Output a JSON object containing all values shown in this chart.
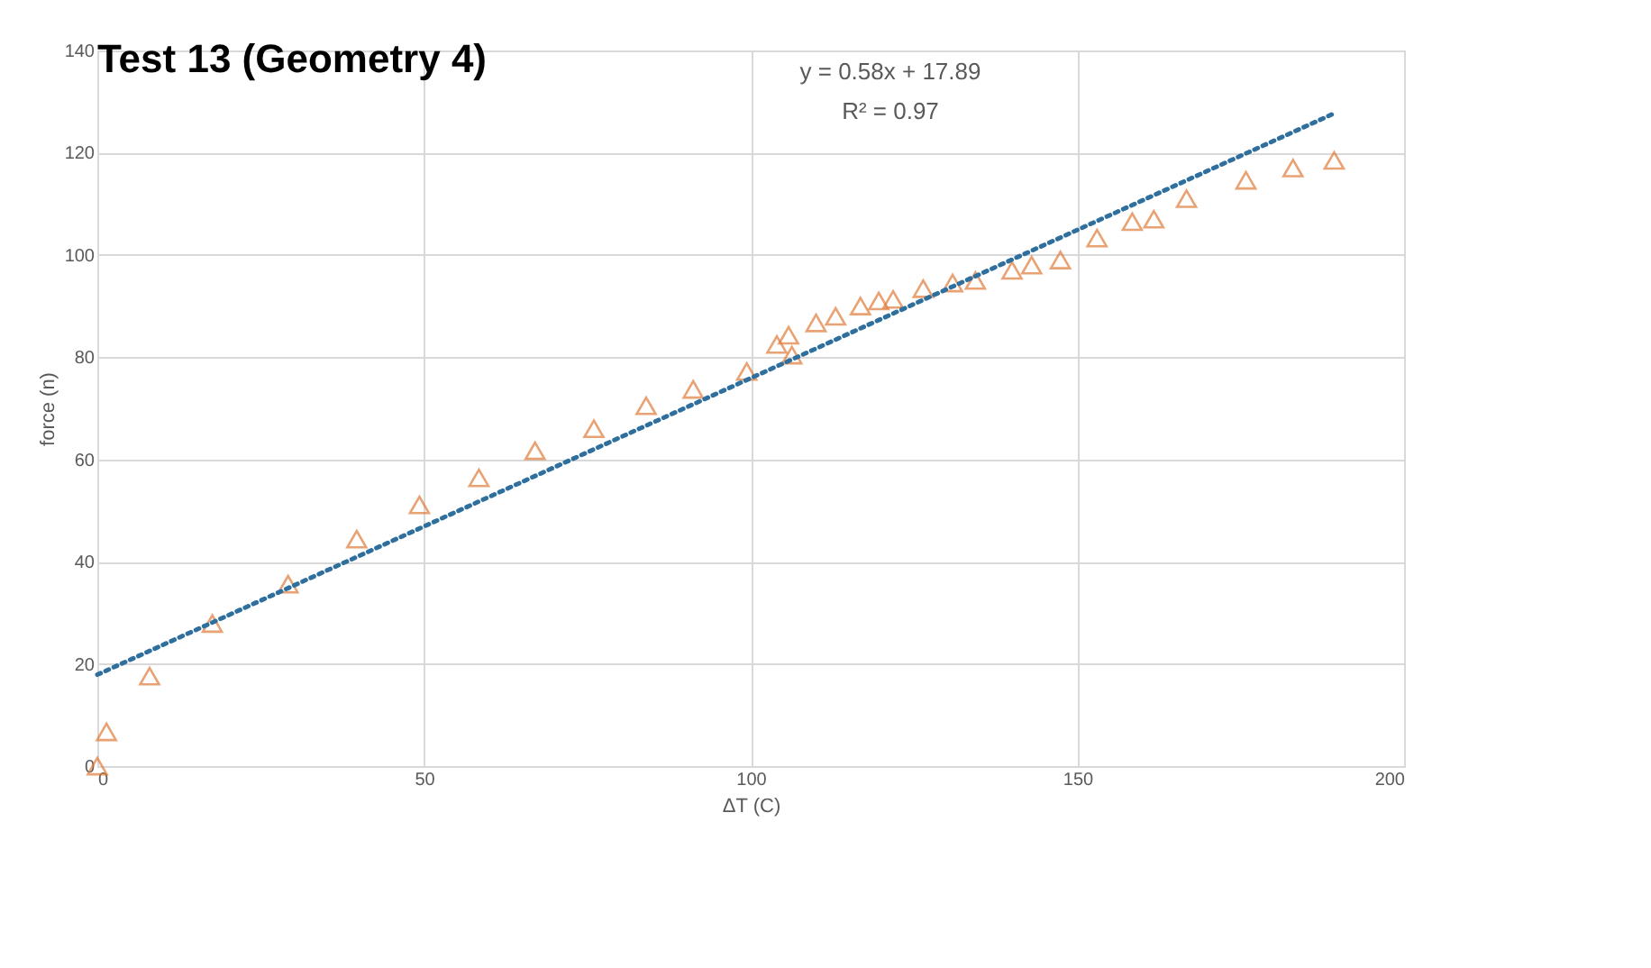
{
  "chart_data": {
    "type": "scatter",
    "title": "Test 13 (Geometry 4)",
    "xlabel": "ΔT (C)",
    "ylabel": "force (n)",
    "xlim": [
      0,
      200
    ],
    "xticks": [
      0,
      50,
      100,
      150,
      200
    ],
    "ylim": [
      0,
      140
    ],
    "yticks": [
      0,
      20,
      40,
      60,
      80,
      100,
      120,
      140
    ],
    "grid": true,
    "legend": false,
    "annotations": [
      "y = 0.58x + 17.89",
      "R² = 0.97"
    ],
    "series": [
      {
        "marker": "triangle",
        "color": "#e07b39",
        "x": [
          0,
          1.4,
          8,
          17.6,
          29.2,
          39.7,
          49.3,
          58.4,
          67,
          76,
          84,
          91.2,
          99.4,
          104,
          105.8,
          106.3,
          110,
          113,
          116.8,
          119.6,
          121.8,
          126.4,
          130.9,
          134.4,
          140,
          143,
          147.4,
          153,
          158.4,
          161.7,
          166.7,
          175.8,
          183,
          189.3
        ],
        "values": [
          0,
          6.7,
          17.6,
          27.9,
          35.6,
          44.4,
          51.1,
          56.4,
          61.7,
          66,
          70.5,
          73.7,
          77.2,
          82.5,
          84.3,
          80.4,
          86.7,
          88,
          90,
          91,
          91.3,
          93.4,
          94.5,
          95,
          97,
          98,
          99,
          103.3,
          106.5,
          107,
          111,
          114.6,
          117,
          118.5
        ]
      },
      {
        "type": "line",
        "line_style": "dotted",
        "marker": "none",
        "color": "#2e6f9e",
        "x": [
          0,
          189.3
        ],
        "values": [
          17.89,
          127.69
        ]
      }
    ]
  }
}
